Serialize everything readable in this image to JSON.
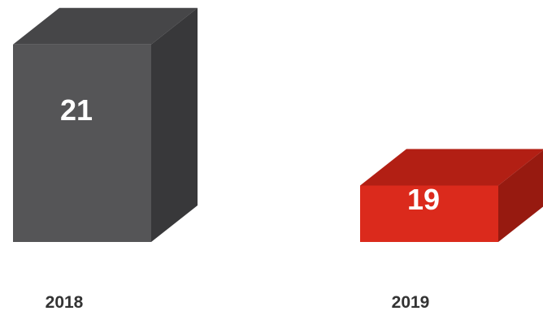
{
  "chart_data": {
    "type": "bar",
    "style": "3d",
    "categories": [
      "2018",
      "2019"
    ],
    "values": [
      21,
      19
    ],
    "colors": [
      {
        "front": "#555557",
        "top": "#464648",
        "side": "#38383a"
      },
      {
        "front": "#db2a1c",
        "top": "#b21f14",
        "side": "#971a10"
      }
    ],
    "data_labels": [
      "21",
      "19"
    ],
    "title": "",
    "xlabel": "",
    "ylabel": "",
    "grid": false,
    "legend": "none"
  }
}
